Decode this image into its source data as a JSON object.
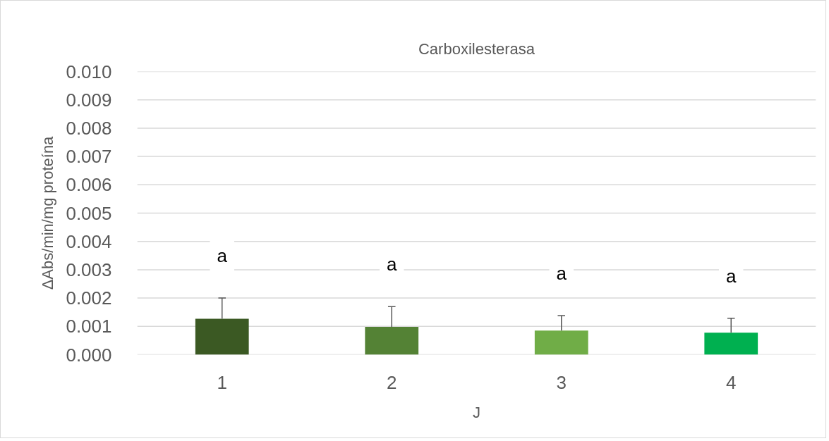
{
  "chart_data": {
    "type": "bar",
    "title": "Carboxilesterasa",
    "xlabel": "J",
    "ylabel": "ΔAbs/min/mg proteína",
    "categories": [
      "1",
      "2",
      "3",
      "4"
    ],
    "values": [
      0.00127,
      0.00098,
      0.00085,
      0.00078
    ],
    "colors": [
      "#3b5923",
      "#548235",
      "#70ad47",
      "#00b050"
    ],
    "errors": [
      [
        0.00127,
        0.002
      ],
      [
        0.00098,
        0.0017
      ],
      [
        0.00085,
        0.00138
      ],
      [
        0.00078,
        0.00129
      ]
    ],
    "ylim": [
      0,
      0.01
    ],
    "yticks": [
      {
        "value": 0,
        "label": "0.000"
      },
      {
        "value": 0.001,
        "label": "0.001"
      },
      {
        "value": 0.002,
        "label": "0.002"
      },
      {
        "value": 0.003,
        "label": "0.003"
      },
      {
        "value": 0.004,
        "label": "0.004"
      },
      {
        "value": 0.005,
        "label": "0.005"
      },
      {
        "value": 0.006,
        "label": "0.006"
      },
      {
        "value": 0.007,
        "label": "0.007"
      },
      {
        "value": 0.008,
        "label": "0.008"
      },
      {
        "value": 0.009,
        "label": "0.009"
      },
      {
        "value": 0.01,
        "label": "0.010"
      }
    ],
    "annotations": [
      "a",
      "a",
      "a",
      "a"
    ],
    "grid": "y"
  }
}
